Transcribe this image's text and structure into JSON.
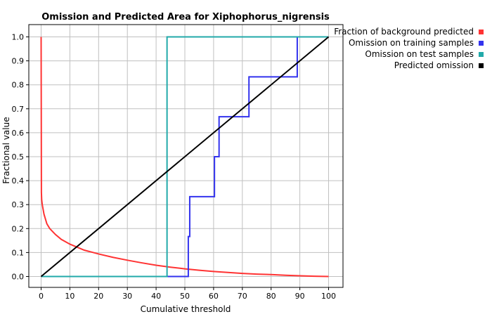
{
  "chart_data": {
    "type": "line",
    "title": "Omission and Predicted Area for Xiphophorus_nigrensis",
    "xlabel": "Cumulative threshold",
    "ylabel": "Fractional value",
    "xlim": [
      0,
      100
    ],
    "ylim": [
      0,
      1.0
    ],
    "xticks": [
      0,
      10,
      20,
      30,
      40,
      50,
      60,
      70,
      80,
      90,
      100
    ],
    "yticks": [
      0.0,
      0.1,
      0.2,
      0.3,
      0.4,
      0.5,
      0.6,
      0.7,
      0.8,
      0.9,
      1.0
    ],
    "xtick_labels": [
      "0",
      "10",
      "20",
      "30",
      "40",
      "50",
      "60",
      "70",
      "80",
      "90",
      "100"
    ],
    "ytick_labels": [
      "0.0",
      "0.1",
      "0.2",
      "0.3",
      "0.4",
      "0.5",
      "0.6",
      "0.7",
      "0.8",
      "0.9",
      "1.0"
    ],
    "grid": true,
    "legend_position": "top-right",
    "series": [
      {
        "name": "Fraction of background predicted",
        "color": "#ff3333",
        "x": [
          0,
          0.05,
          0.1,
          0.2,
          0.4,
          0.7,
          1,
          2,
          3,
          5,
          7,
          10,
          15,
          20,
          25,
          30,
          35,
          40,
          45,
          50,
          55,
          60,
          65,
          70,
          75,
          80,
          85,
          90,
          95,
          100
        ],
        "y": [
          1.0,
          0.7,
          0.35,
          0.32,
          0.3,
          0.28,
          0.26,
          0.22,
          0.2,
          0.175,
          0.155,
          0.135,
          0.11,
          0.094,
          0.08,
          0.068,
          0.057,
          0.047,
          0.039,
          0.032,
          0.026,
          0.021,
          0.017,
          0.013,
          0.01,
          0.008,
          0.005,
          0.003,
          0.001,
          0.0
        ]
      },
      {
        "name": "Omission on training samples",
        "color": "#3333ee",
        "x": [
          0,
          51.2,
          51.2,
          51.7,
          51.7,
          52.3,
          52.3,
          60.3,
          60.3,
          61.9,
          61.9,
          72.3,
          72.3,
          89.1,
          89.1,
          100
        ],
        "y": [
          0,
          0,
          0.1667,
          0.1667,
          0.3333,
          0.3333,
          0.3333,
          0.3333,
          0.5,
          0.5,
          0.6667,
          0.6667,
          0.8333,
          0.8333,
          1.0,
          1.0
        ]
      },
      {
        "name": "Omission on test samples",
        "color": "#22aaaa",
        "x": [
          0,
          43.8,
          43.8,
          100
        ],
        "y": [
          0,
          0,
          1.0,
          1.0
        ]
      },
      {
        "name": "Predicted omission",
        "color": "#000000",
        "x": [
          0,
          100
        ],
        "y": [
          0,
          1.0
        ]
      }
    ]
  }
}
